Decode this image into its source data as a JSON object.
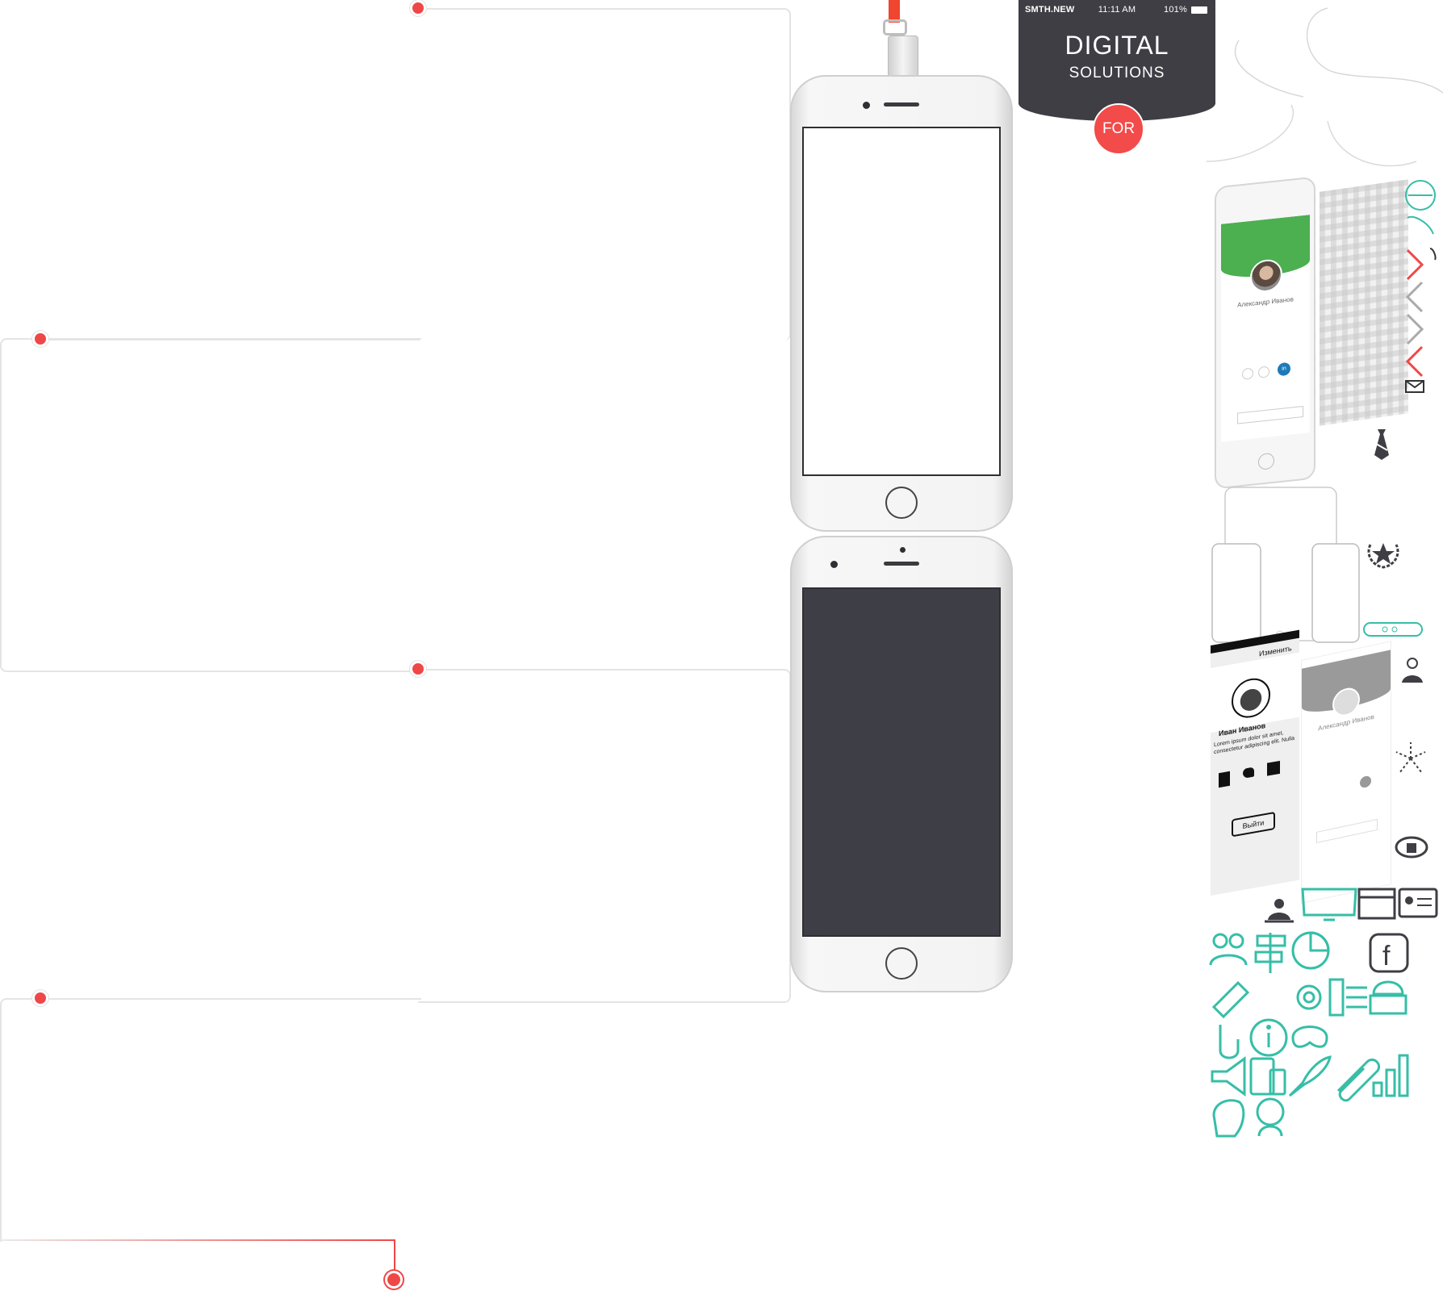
{
  "promo": {
    "status_carrier": "SMTH.NEW",
    "status_time": "11:11 AM",
    "status_battery": "101%",
    "title": "DIGITAL",
    "subtitle": "SOLUTIONS",
    "button_label": "FOR"
  },
  "phones": [
    {
      "screen": "white"
    },
    {
      "screen": "dark"
    }
  ],
  "sprites": {
    "profile_name_green": "Александр Иванов",
    "profile_name_gray": "Александр Иванов",
    "wire_edit": "Изменить",
    "wire_name": "Иван Иванов",
    "wire_lorem": "Lorem ipsum dolor sit amet, consectetur adipiscing elit. Nulla quam velit, vulputate",
    "wire_exit": "Выйти",
    "social_in": "in",
    "fb_letter": "f"
  },
  "colors": {
    "accent_red": "#ef4747",
    "dark_panel": "#3e3e44",
    "profile_green": "#4caf50",
    "icon_teal": "#36bea7"
  },
  "icons": [
    "user-avatar-icon",
    "pointer-hand-icon",
    "phone-icon",
    "arrow-right-icon",
    "arrow-left-icon",
    "mail-icon",
    "tie-icon",
    "laurel-star-icon",
    "router-icon",
    "idea-person-icon",
    "fireworks-icon",
    "stadium-icon",
    "presenter-icon",
    "monitor-icon",
    "browser-icon",
    "id-card-icon",
    "group-icon",
    "signpost-icon",
    "pie-chart-icon",
    "facebook-icon",
    "ticket-icon",
    "settings-icon",
    "checklist-icon",
    "cloud-server-icon",
    "touch-icon",
    "info-icon",
    "gamepad-icon",
    "megaphone-icon",
    "devices-icon",
    "rocket-icon",
    "paperclip-icon",
    "bar-chart-icon",
    "brain-icon",
    "support-icon"
  ]
}
